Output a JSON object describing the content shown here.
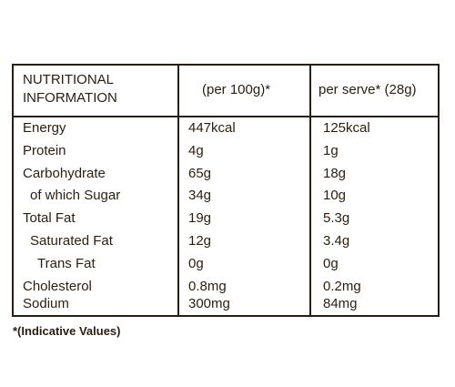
{
  "table": {
    "header": {
      "col1_line1": "NUTRITIONAL",
      "col1_line2": "INFORMATION",
      "col2": "(per 100g)*",
      "col3": "per serve* (28g)"
    },
    "rows": [
      {
        "label": "Energy",
        "per100": "447kcal",
        "perserve": "125kcal"
      },
      {
        "label": "Protein",
        "per100": "4g",
        "perserve": "1g"
      },
      {
        "label": "Carbohydrate",
        "per100": "65g",
        "perserve": "18g"
      },
      {
        "label": " of which Sugar",
        "per100": "34g",
        "perserve": "10g"
      },
      {
        "label": "Total Fat",
        "per100": "19g",
        "perserve": "5.3g"
      },
      {
        "label": " Saturated Fat",
        "per100": "12g",
        "perserve": "3.4g"
      },
      {
        "label": " Trans Fat",
        "per100": "0g",
        "perserve": "0g"
      },
      {
        "label": "Cholesterol",
        "per100": "0.8mg",
        "perserve": "0.2mg"
      },
      {
        "label": "Sodium",
        "per100": "300mg",
        "perserve": "84mg"
      }
    ]
  },
  "footnote": "*(Indicative Values)"
}
